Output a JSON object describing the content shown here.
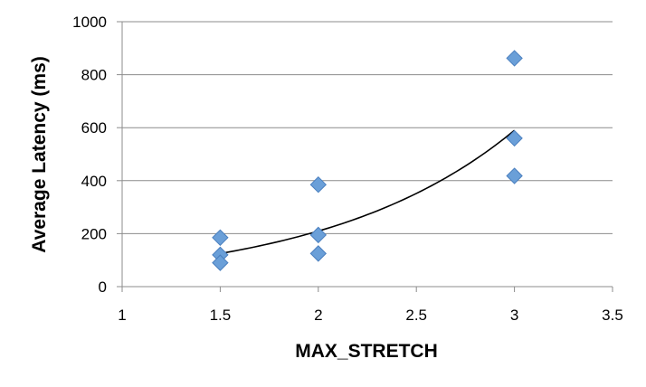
{
  "chart_data": {
    "type": "scatter",
    "title": "",
    "xlabel": "MAX_STRETCH",
    "ylabel": "Average Latency (ms)",
    "xlim": [
      1,
      3.5
    ],
    "ylim": [
      0,
      1000
    ],
    "x_ticks": [
      1,
      1.5,
      2,
      2.5,
      3,
      3.5
    ],
    "x_tick_labels": [
      "1",
      "1.5",
      "2",
      "2.5",
      "3",
      "3.5"
    ],
    "y_ticks": [
      0,
      200,
      400,
      600,
      800,
      1000
    ],
    "y_tick_labels": [
      "0",
      "200",
      "400",
      "600",
      "800",
      "1000"
    ],
    "grid": {
      "horizontal": true,
      "vertical": false
    },
    "legend": "none",
    "marker": {
      "shape": "diamond",
      "color": "#6a9fd8",
      "edge": "#4a7fbf"
    },
    "trendline": {
      "type": "exponential",
      "color": "#000000",
      "from_x": 1.5,
      "to_x": 3,
      "start_y": 125,
      "end_y": 590
    },
    "series": [
      {
        "points": [
          {
            "x": 1.5,
            "y": 185
          },
          {
            "x": 1.5,
            "y": 120
          },
          {
            "x": 1.5,
            "y": 90
          },
          {
            "x": 2,
            "y": 385
          },
          {
            "x": 2,
            "y": 195
          },
          {
            "x": 2,
            "y": 125
          },
          {
            "x": 3,
            "y": 862
          },
          {
            "x": 3,
            "y": 560
          },
          {
            "x": 3,
            "y": 418
          }
        ]
      }
    ]
  }
}
